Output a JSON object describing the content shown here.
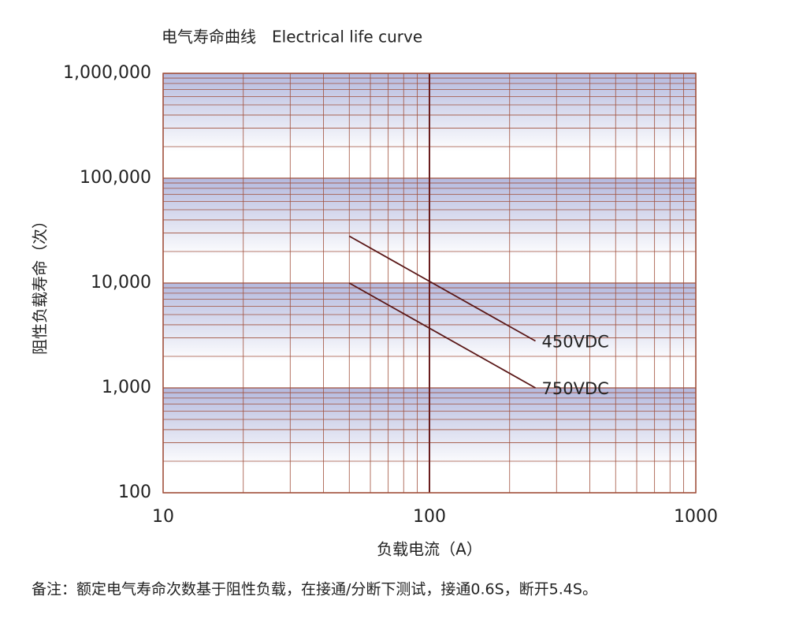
{
  "chart_data": {
    "type": "line",
    "title": "电气寿命曲线　Electrical life curve",
    "x_label": "负载电流（A）",
    "y_label": "阻性负载寿命（次）",
    "note": "备注：额定电气寿命次数基于阻性负载，在接通/分断下测试，接通0.6S，断开5.4S。",
    "x": [
      50,
      250
    ],
    "series": [
      {
        "name": "450VDC",
        "color": "#5a1818",
        "values": [
          28000,
          2800
        ]
      },
      {
        "name": "750VDC",
        "color": "#5a1818",
        "values": [
          10000,
          1000
        ]
      }
    ],
    "xscale": "log",
    "yscale": "log",
    "xlim": [
      10,
      1000
    ],
    "ylim": [
      100,
      1000000
    ],
    "xticks": [
      10,
      100,
      1000
    ],
    "yticks": [
      100,
      {
        "value": 1000,
        "label": "1,000"
      },
      {
        "value": 10000,
        "label": "10,000"
      },
      {
        "value": 100000,
        "label": "100,000"
      },
      {
        "value": 1000000,
        "label": "1,000,000"
      }
    ],
    "grid": "minor",
    "grid_color": "#a0503c",
    "band_color": "#b4b9de"
  }
}
